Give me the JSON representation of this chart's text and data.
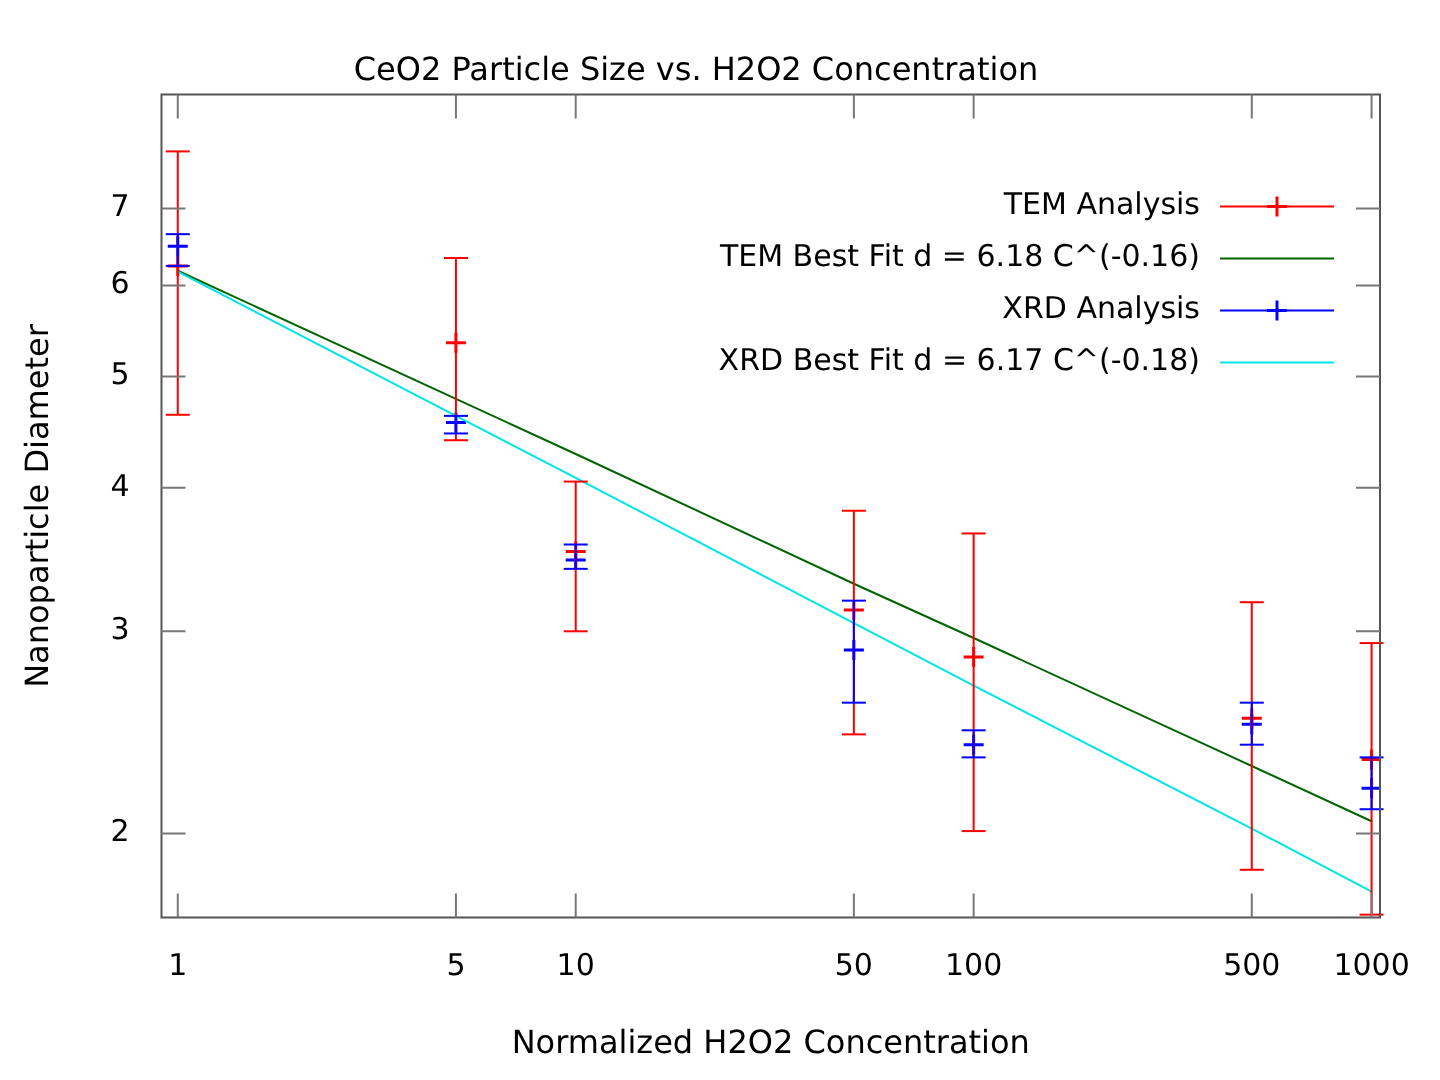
{
  "chart_data": {
    "type": "scatter",
    "title": "CeO2 Particle Size vs. H2O2 Concentration",
    "xlabel": "Normalized H2O2 Concentration",
    "ylabel": "Nanoparticle Diameter",
    "log": "xy",
    "xlim": [
      0.91,
      1050
    ],
    "ylim": [
      1.69,
      8.8
    ],
    "xticks": [
      1,
      5,
      10,
      50,
      100,
      500,
      1000
    ],
    "yticks": [
      2,
      3,
      4,
      5,
      6,
      7
    ],
    "grid": false,
    "legend": "top right",
    "x": [
      1,
      5,
      10,
      50,
      100,
      500,
      1000
    ],
    "series": [
      {
        "name": "TEM Analysis",
        "color": "#ff0000",
        "marker": "cross",
        "values": [
          6.24,
          5.35,
          3.52,
          3.13,
          2.85,
          2.52,
          2.32
        ],
        "errors": [
          [
            4.63,
            7.85
          ],
          [
            4.4,
            6.34
          ],
          [
            3.0,
            4.05
          ],
          [
            2.44,
            3.82
          ],
          [
            2.01,
            3.65
          ],
          [
            1.86,
            3.18
          ],
          [
            1.7,
            2.93
          ]
        ]
      },
      {
        "name": "TEM Best Fit d = 6.18 C^(-0.16)",
        "type": "line",
        "color": "#006400",
        "marker": "none",
        "line_style": "solid",
        "values": [
          6.18,
          4.78,
          4.28,
          3.3,
          2.96,
          2.29,
          2.05
        ]
      },
      {
        "name": "XRD Analysis",
        "color": "#0000ff",
        "marker": "cross",
        "values": [
          6.49,
          4.56,
          3.46,
          2.89,
          2.39,
          2.49,
          2.19
        ],
        "errors": [
          [
            6.24,
            6.65
          ],
          [
            4.46,
            4.62
          ],
          [
            3.4,
            3.57
          ],
          [
            2.6,
            3.19
          ],
          [
            2.33,
            2.46
          ],
          [
            2.39,
            2.6
          ],
          [
            2.1,
            2.33
          ]
        ]
      },
      {
        "name": "XRD Best Fit d = 6.17 C^(-0.18)",
        "type": "line",
        "color": "#00e5e5",
        "marker": "none",
        "line_style": "solid",
        "values": [
          6.17,
          4.62,
          4.08,
          3.05,
          2.69,
          2.02,
          1.78
        ]
      }
    ]
  }
}
